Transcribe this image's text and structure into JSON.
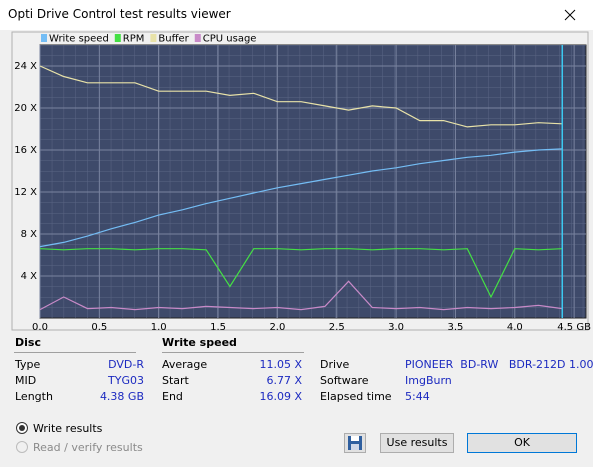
{
  "window": {
    "title": "Opti Drive Control test results viewer"
  },
  "chart_data": {
    "type": "line",
    "x": [
      0.0,
      0.2,
      0.4,
      0.6,
      0.8,
      1.0,
      1.2,
      1.4,
      1.6,
      1.8,
      2.0,
      2.2,
      2.4,
      2.6,
      2.8,
      3.0,
      3.2,
      3.4,
      3.6,
      3.8,
      4.0,
      4.2,
      4.4
    ],
    "series": [
      {
        "name": "Write speed",
        "color": "#74bdf5",
        "values": [
          6.8,
          7.2,
          7.8,
          8.5,
          9.1,
          9.8,
          10.3,
          10.9,
          11.4,
          11.9,
          12.4,
          12.8,
          13.2,
          13.6,
          14.0,
          14.3,
          14.7,
          15.0,
          15.3,
          15.5,
          15.8,
          16.0,
          16.1
        ]
      },
      {
        "name": "RPM",
        "color": "#44e044",
        "values": [
          6.6,
          6.5,
          6.6,
          6.6,
          6.5,
          6.6,
          6.6,
          6.5,
          3.0,
          6.6,
          6.6,
          6.5,
          6.6,
          6.6,
          6.5,
          6.6,
          6.6,
          6.5,
          6.6,
          2.0,
          6.6,
          6.5,
          6.6
        ]
      },
      {
        "name": "Buffer",
        "color": "#e8e2a8",
        "values": [
          24.0,
          23.0,
          22.4,
          22.4,
          22.4,
          21.6,
          21.6,
          21.6,
          21.2,
          21.4,
          20.6,
          20.6,
          20.2,
          19.8,
          20.2,
          20.0,
          18.8,
          18.8,
          18.2,
          18.4,
          18.4,
          18.6,
          18.5
        ]
      },
      {
        "name": "CPU usage",
        "color": "#c88ac8",
        "values": [
          0.8,
          2.0,
          0.9,
          1.0,
          0.8,
          1.0,
          0.9,
          1.1,
          1.0,
          0.9,
          1.0,
          0.8,
          1.1,
          3.5,
          1.0,
          0.9,
          1.0,
          0.8,
          1.0,
          0.9,
          1.0,
          1.2,
          0.9
        ]
      }
    ],
    "xlim": [
      0,
      4.6
    ],
    "ylim": [
      0,
      26
    ],
    "xticks": [
      0.0,
      0.5,
      1.0,
      1.5,
      2.0,
      2.5,
      3.0,
      3.5,
      4.0,
      {
        "value": 4.5,
        "label": "4.5 GB"
      }
    ],
    "yticks": [
      {
        "value": 4,
        "label": "4 X"
      },
      {
        "value": 8,
        "label": "8 X"
      },
      {
        "value": 12,
        "label": "12 X"
      },
      {
        "value": 16,
        "label": "16 X"
      },
      {
        "value": 20,
        "label": "20 X"
      },
      {
        "value": 24,
        "label": "24 X"
      }
    ],
    "grid": true
  },
  "disc": {
    "heading": "Disc",
    "rows": [
      {
        "label": "Type",
        "value": "DVD-R"
      },
      {
        "label": "MID",
        "value": "TYG03"
      },
      {
        "label": "Length",
        "value": "4.38 GB"
      }
    ]
  },
  "write_speed": {
    "heading": "Write speed",
    "rows": [
      {
        "label": "Average",
        "value": "11.05 X"
      },
      {
        "label": "Start",
        "value": "6.77 X"
      },
      {
        "label": "End",
        "value": "16.09 X"
      }
    ]
  },
  "drive_info": {
    "rows": [
      {
        "label": "Drive",
        "value": "PIONEER  BD-RW   BDR-212D 1.00"
      },
      {
        "label": "Software",
        "value": "ImgBurn"
      },
      {
        "label": "Elapsed time",
        "value": "5:44"
      }
    ]
  },
  "options": {
    "write_results": "Write results",
    "read_verify_results": "Read / verify results"
  },
  "buttons": {
    "use_results": "Use results",
    "ok": "OK"
  }
}
